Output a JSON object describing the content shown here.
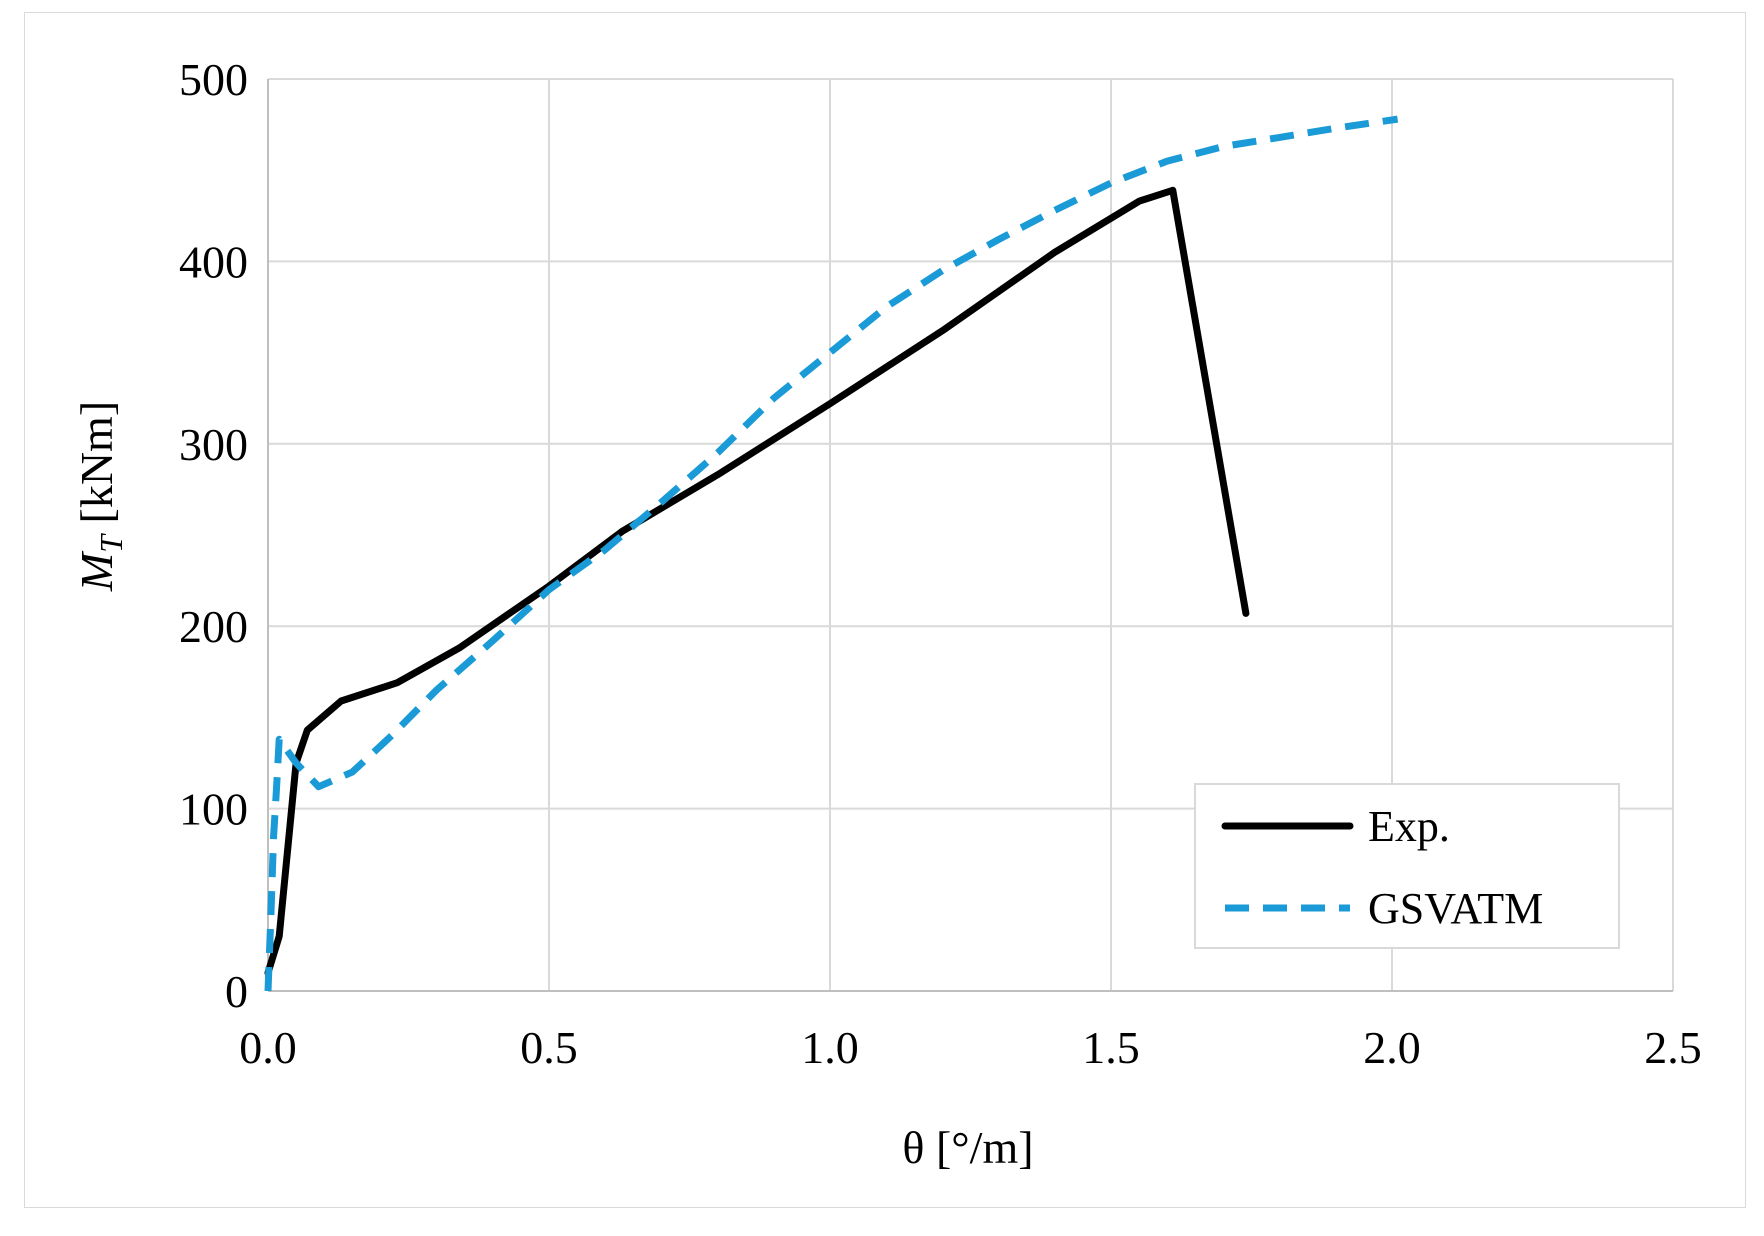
{
  "chart_data": {
    "type": "line",
    "title": "",
    "xlabel": "θ [°/m]",
    "ylabel_main": "M",
    "ylabel_sub": "T",
    "ylabel_unit": " [kNm]",
    "xlim": [
      0,
      2.5
    ],
    "ylim": [
      0,
      500
    ],
    "xticks": [
      0,
      0.5,
      1.0,
      1.5,
      2.0,
      2.5
    ],
    "xtick_labels": [
      "0.0",
      "0.5",
      "1.0",
      "1.5",
      "2.0",
      "2.5"
    ],
    "yticks": [
      0,
      100,
      200,
      300,
      400,
      500
    ],
    "ytick_labels": [
      "0",
      "100",
      "200",
      "300",
      "400",
      "500"
    ],
    "grid": true,
    "legend_position": "bottom-right",
    "series": [
      {
        "name": "Exp.",
        "color": "#000000",
        "style": "solid",
        "x": [
          0,
          0.02,
          0.05,
          0.07,
          0.13,
          0.23,
          0.34,
          0.5,
          0.63,
          0.8,
          1.0,
          1.2,
          1.4,
          1.55,
          1.61,
          1.74
        ],
        "y": [
          10,
          30,
          125,
          143,
          159,
          169,
          188,
          222,
          252,
          283,
          322,
          362,
          405,
          433,
          439,
          207
        ]
      },
      {
        "name": "GSVATM",
        "color": "#1a9ad6",
        "style": "dashed",
        "x": [
          0,
          0.005,
          0.01,
          0.015,
          0.02,
          0.05,
          0.09,
          0.15,
          0.22,
          0.3,
          0.4,
          0.5,
          0.6,
          0.7,
          0.8,
          0.9,
          1.0,
          1.1,
          1.2,
          1.3,
          1.4,
          1.5,
          1.6,
          1.7,
          1.8,
          1.9,
          2.01
        ],
        "y": [
          0,
          40,
          85,
          110,
          138,
          125,
          112,
          120,
          140,
          165,
          192,
          220,
          242,
          268,
          295,
          325,
          350,
          375,
          395,
          412,
          428,
          443,
          455,
          463,
          468,
          473,
          478
        ]
      }
    ]
  }
}
